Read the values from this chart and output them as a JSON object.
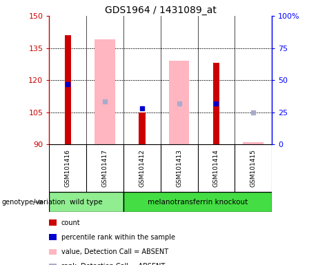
{
  "title": "GDS1964 / 1431089_at",
  "samples": [
    "GSM101416",
    "GSM101417",
    "GSM101412",
    "GSM101413",
    "GSM101414",
    "GSM101415"
  ],
  "ylim_left": [
    90,
    150
  ],
  "ylim_right": [
    0,
    100
  ],
  "yticks_left": [
    90,
    105,
    120,
    135,
    150
  ],
  "yticks_right": [
    0,
    25,
    50,
    75,
    100
  ],
  "left_tick_labels": [
    "90",
    "105",
    "120",
    "135",
    "150"
  ],
  "right_tick_labels": [
    "0",
    "25",
    "50",
    "75",
    "100%"
  ],
  "red_bars": {
    "GSM101416": [
      90,
      141
    ],
    "GSM101417": [
      90,
      90
    ],
    "GSM101412": [
      90,
      105
    ],
    "GSM101413": [
      90,
      90
    ],
    "GSM101414": [
      90,
      128
    ],
    "GSM101415": [
      90,
      90
    ]
  },
  "pink_bars": {
    "GSM101416": [
      90,
      90
    ],
    "GSM101417": [
      90,
      139
    ],
    "GSM101412": [
      90,
      90
    ],
    "GSM101413": [
      90,
      129
    ],
    "GSM101414": [
      90,
      90
    ],
    "GSM101415": [
      90,
      91
    ]
  },
  "blue_squares": {
    "GSM101416": 118,
    "GSM101417": null,
    "GSM101412": 107,
    "GSM101413": null,
    "GSM101414": 109,
    "GSM101415": null
  },
  "lavender_squares": {
    "GSM101416": null,
    "GSM101417": 110,
    "GSM101412": null,
    "GSM101413": 109,
    "GSM101414": null,
    "GSM101415": 105
  },
  "red_color": "#CC0000",
  "pink_color": "#FFB6C1",
  "blue_color": "#0000CC",
  "lavender_color": "#AAAACC",
  "legend_labels": [
    "count",
    "percentile rank within the sample",
    "value, Detection Call = ABSENT",
    "rank, Detection Call = ABSENT"
  ],
  "legend_colors": [
    "#CC0000",
    "#0000CC",
    "#FFB6C1",
    "#AAAACC"
  ],
  "genotype_label": "genotype/variation",
  "wild_type_label": "wild type",
  "knockout_label": "melanotransferrin knockout",
  "wild_type_color": "#90EE90",
  "knockout_color": "#44DD44",
  "sample_bg_color": "#CCCCCC"
}
